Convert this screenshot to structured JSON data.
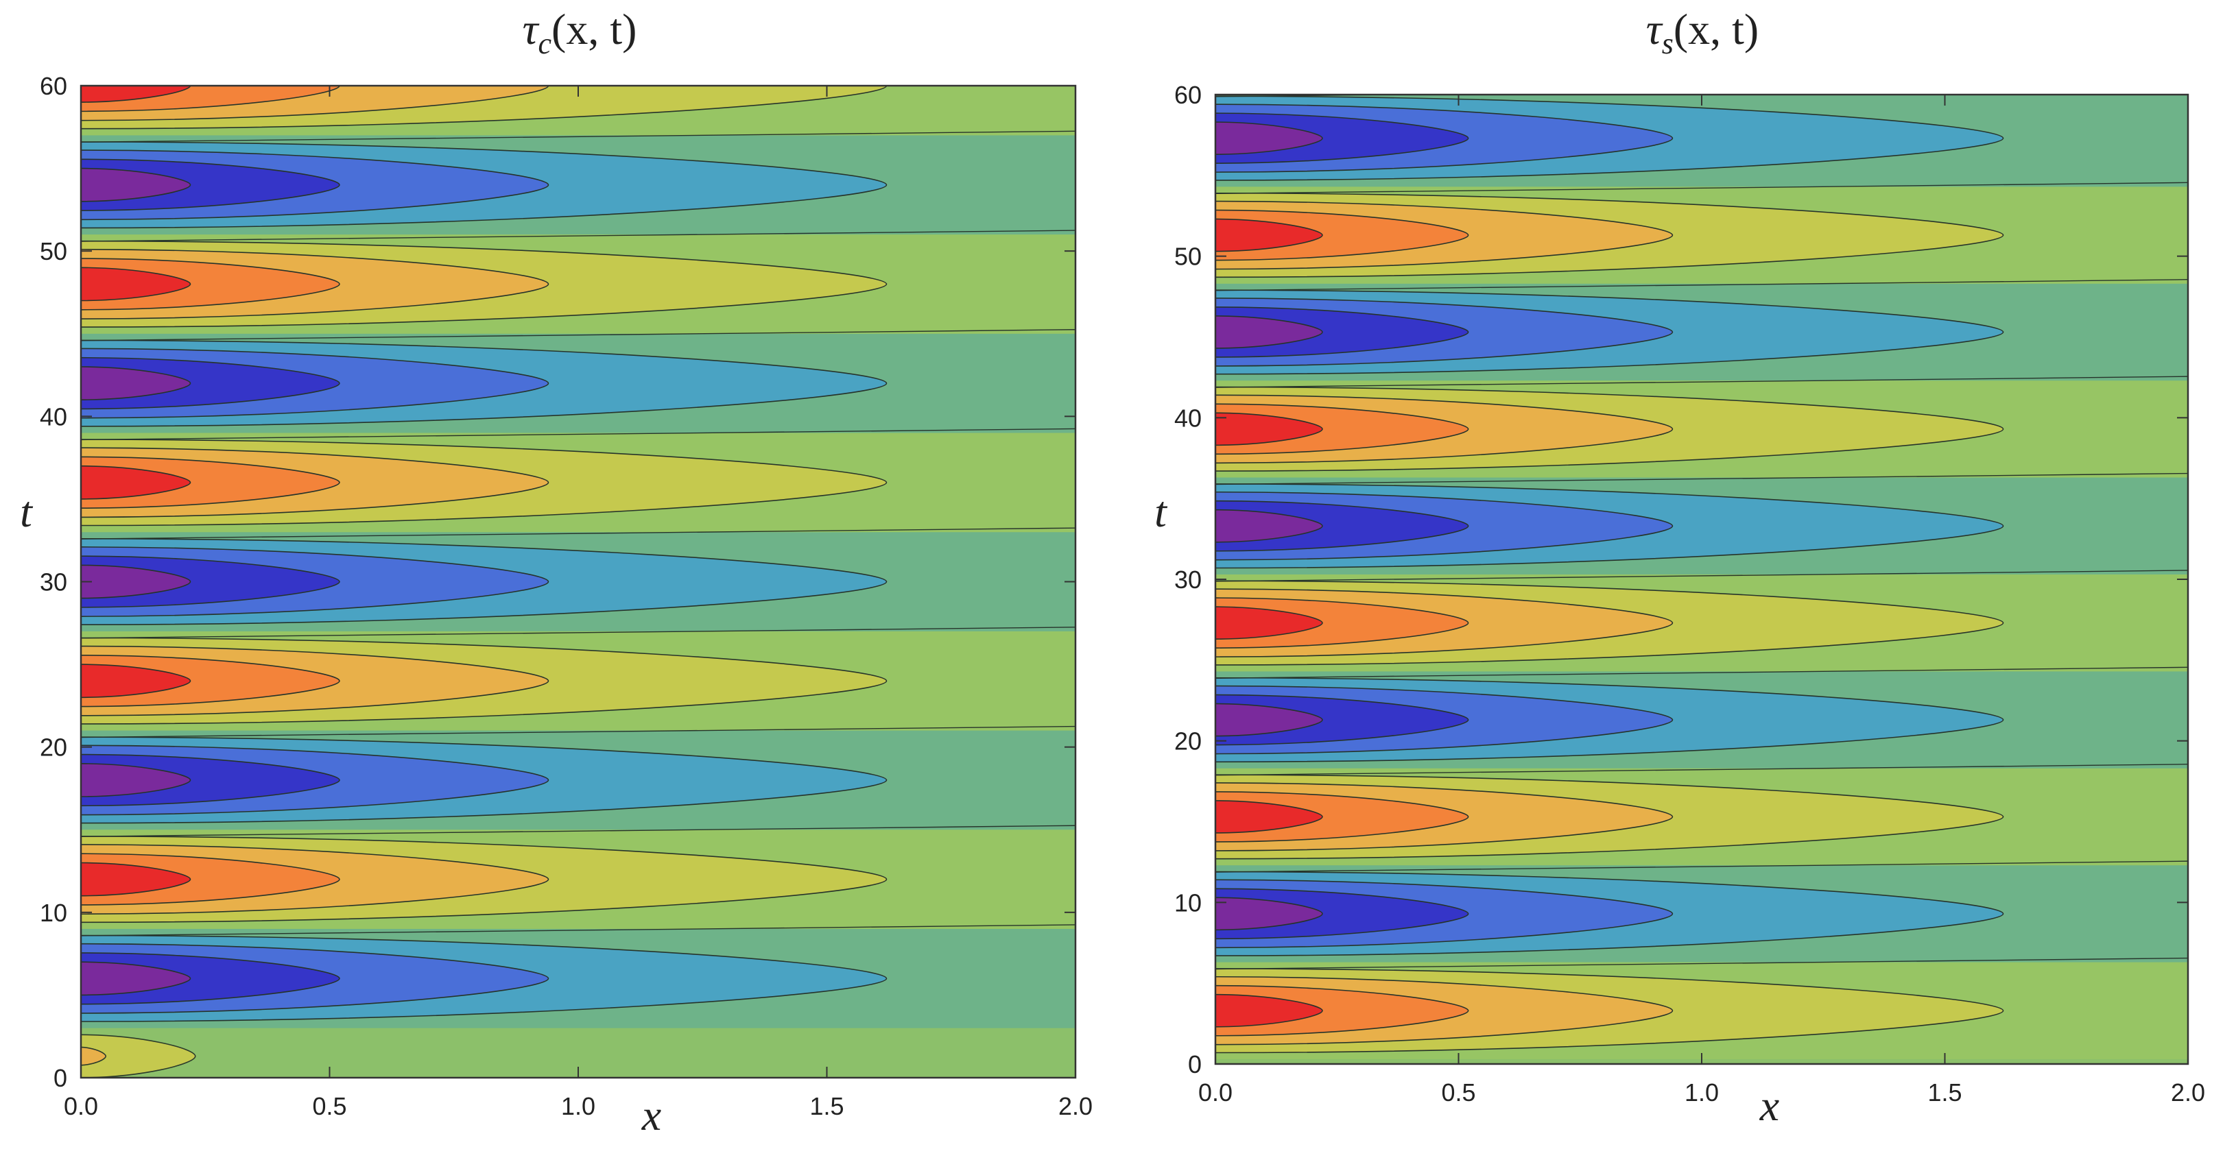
{
  "chart_data": [
    {
      "type": "contour",
      "title": {
        "symbol": "τ",
        "subscript": "c",
        "args": "(x, t)"
      },
      "xlabel": "x",
      "ylabel": "t",
      "xlim": [
        0,
        2
      ],
      "ylim": [
        0,
        60
      ],
      "xticks": [
        "0.0",
        "0.5",
        "1.0",
        "1.5",
        "2.0"
      ],
      "yticks": [
        "0",
        "10",
        "20",
        "30",
        "40",
        "50",
        "60"
      ],
      "lobe_period": 6,
      "first_full_lobe_t": 6,
      "first_lobe_sign": -1,
      "small_lobe": {
        "t": 1.3,
        "sign": 1,
        "reach": 0.23
      },
      "contour_reach": [
        0.22,
        0.52,
        0.94,
        1.62
      ],
      "phase_line_offset_t": 3,
      "levels": 10
    },
    {
      "type": "contour",
      "title": {
        "symbol": "τ",
        "subscript": "s",
        "args": "(x, t)"
      },
      "xlabel": "x",
      "ylabel": "t",
      "xlim": [
        0,
        2
      ],
      "ylim": [
        0,
        60
      ],
      "xticks": [
        "0.0",
        "0.5",
        "1.0",
        "1.5",
        "2.0"
      ],
      "yticks": [
        "0",
        "10",
        "20",
        "30",
        "40",
        "50",
        "60"
      ],
      "lobe_period": 6,
      "first_full_lobe_t": 3.3,
      "first_lobe_sign": 1,
      "small_lobe": null,
      "contour_reach": [
        0.22,
        0.52,
        0.94,
        1.62
      ],
      "phase_line_offset_t": 3,
      "levels": 10
    }
  ],
  "palette": {
    "neutral": "#8cc06a",
    "ring_pos": [
      "#c5c94e",
      "#e8b04a",
      "#f3833a",
      "#e82a2a"
    ],
    "ring_neg": [
      "#70ad8e",
      "#4aa3c3",
      "#4a6fd8",
      "#3535c8",
      "#7a2a9c"
    ]
  }
}
